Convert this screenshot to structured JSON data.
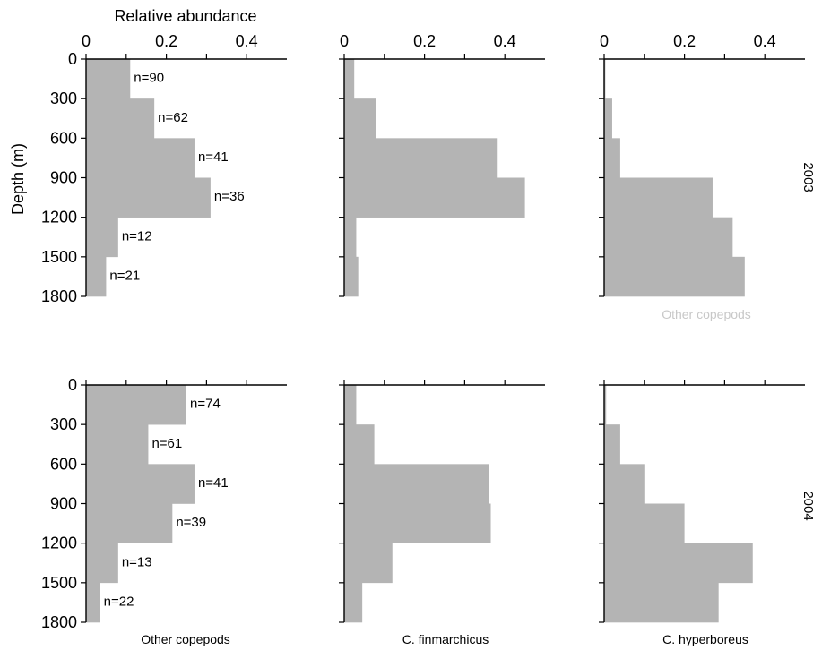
{
  "colors": {
    "bar": "#b4b4b4",
    "axis": "#000000",
    "ghost_text": "#c8c8c8"
  },
  "chart_data": {
    "type": "bar",
    "orientation": "horizontal",
    "xlabel": "Relative abundance",
    "ylabel": "Depth (m)",
    "xlim": [
      0,
      0.5
    ],
    "ylim": [
      0,
      1800
    ],
    "y_ticks": [
      "0",
      "300",
      "600",
      "900",
      "1200",
      "1500",
      "1800"
    ],
    "x_ticks": [
      "0",
      "0.2",
      "0.4"
    ],
    "depth_bins": [
      0,
      300,
      600,
      900,
      1200,
      1500,
      1800
    ],
    "years": [
      "2003",
      "2004"
    ],
    "species": [
      "Other copepods",
      "C. finmarchicus",
      "C. hyperboreus"
    ],
    "ghost_label": "Other copepods",
    "panels": [
      {
        "year": "2003",
        "species": "Other copepods",
        "values": [
          0.11,
          0.17,
          0.27,
          0.31,
          0.08,
          0.05
        ],
        "n": [
          "n=90",
          "n=62",
          "n=41",
          "n=36",
          "n=12",
          "n=21"
        ]
      },
      {
        "year": "2003",
        "species": "C. finmarchicus",
        "values": [
          0.025,
          0.08,
          0.38,
          0.45,
          0.03,
          0.035
        ],
        "n": []
      },
      {
        "year": "2003",
        "species": "C. hyperboreus",
        "values": [
          0.003,
          0.02,
          0.04,
          0.27,
          0.32,
          0.35
        ],
        "n": []
      },
      {
        "year": "2004",
        "species": "Other copepods",
        "values": [
          0.25,
          0.155,
          0.27,
          0.215,
          0.08,
          0.035
        ],
        "n": [
          "n=74",
          "n=61",
          "n=41",
          "n=39",
          "n=13",
          "n=22"
        ]
      },
      {
        "year": "2004",
        "species": "C. finmarchicus",
        "values": [
          0.03,
          0.075,
          0.36,
          0.365,
          0.12,
          0.045
        ],
        "n": []
      },
      {
        "year": "2004",
        "species": "C. hyperboreus",
        "values": [
          0.005,
          0.04,
          0.1,
          0.2,
          0.37,
          0.285
        ],
        "n": []
      }
    ]
  }
}
